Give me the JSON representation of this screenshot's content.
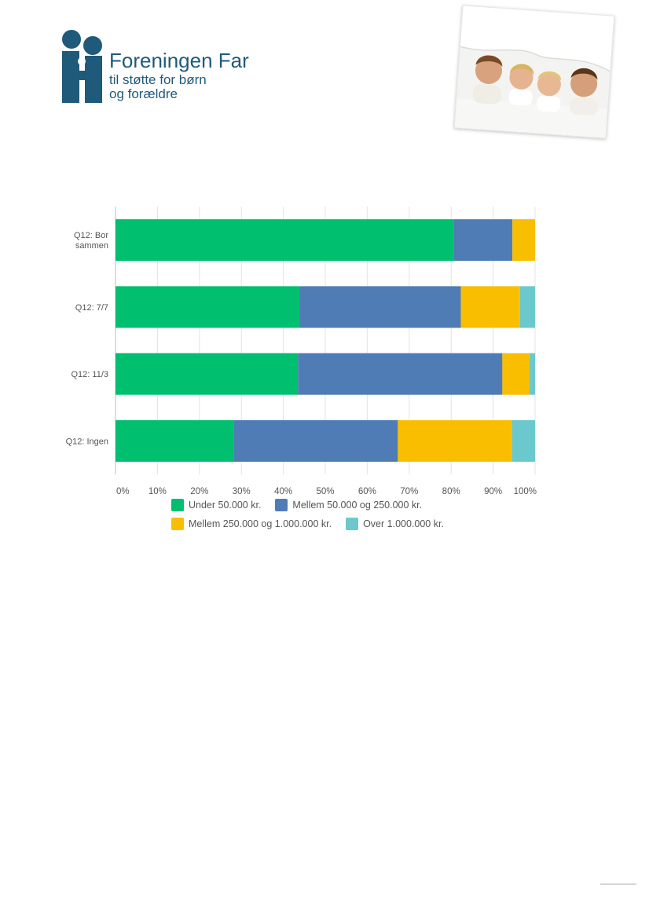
{
  "logo": {
    "title": "Foreningen Far",
    "subtitle_line1": "til støtte for børn",
    "subtitle_line2": "og forældre",
    "color": "#1f5a7a"
  },
  "photo": {
    "icon": "family-photo"
  },
  "chart_data": {
    "type": "bar",
    "orientation": "horizontal",
    "stacked": true,
    "categories": [
      "Q12: Bor sammen",
      "Q12: 7/7",
      "Q12: 11/3",
      "Q12: Ingen"
    ],
    "category_lines": [
      [
        "Q12: Bor",
        "sammen"
      ],
      [
        "Q12: 7/7"
      ],
      [
        "Q12: 11/3"
      ],
      [
        "Q12: Ingen"
      ]
    ],
    "series": [
      {
        "name": "Under 50.000 kr.",
        "color": "#00bf6f",
        "values": [
          80.6,
          43.8,
          43.5,
          28.2
        ]
      },
      {
        "name": "Mellem 50.000 og 250.000 kr.",
        "color": "#507cb6",
        "values": [
          14.0,
          38.5,
          48.7,
          39.1
        ]
      },
      {
        "name": "Mellem 250.000 og 1.000.000 kr.",
        "color": "#f9be00",
        "values": [
          5.4,
          14.1,
          6.5,
          27.2
        ]
      },
      {
        "name": "Over 1.000.000 kr.",
        "color": "#6bc8cd",
        "values": [
          0,
          3.6,
          1.3,
          5.5
        ]
      }
    ],
    "x_ticks": [
      "0%",
      "10%",
      "20%",
      "30%",
      "40%",
      "50%",
      "60%",
      "70%",
      "80%",
      "90%",
      "100%"
    ],
    "xlim": [
      0,
      100
    ],
    "grid": true,
    "legend_position": "bottom"
  }
}
